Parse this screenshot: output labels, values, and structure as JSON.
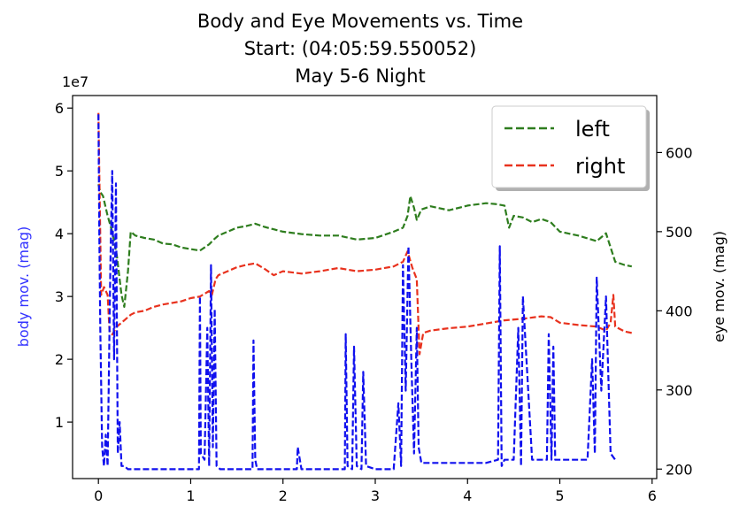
{
  "chart_data": {
    "type": "line",
    "title": [
      "Body and Eye Movements vs. Time",
      "Start: (04:05:59.550052)",
      "May 5-6 Night"
    ],
    "x_ticks": [
      "0",
      "1",
      "2",
      "3",
      "4",
      "5",
      "6"
    ],
    "xlim": [
      -0.28,
      6.05
    ],
    "left_axis": {
      "ylabel": "body mov. (mag)",
      "ylabel_color": "#3333ff",
      "offset_label": "1e7",
      "ticks": [
        "1",
        "2",
        "3",
        "4",
        "5",
        "6"
      ],
      "ylim": [
        0.1,
        6.2
      ]
    },
    "right_axis": {
      "ylabel": "eye mov. (mag)",
      "ticks": [
        "200",
        "300",
        "400",
        "500",
        "600"
      ],
      "ylim": [
        188,
        672
      ]
    },
    "legend": {
      "position": "top-right",
      "entries": [
        {
          "label": "left",
          "color": "#2e7d1e"
        },
        {
          "label": "right",
          "color": "#e8321e"
        }
      ]
    },
    "series": [
      {
        "name": "left",
        "axis": "right",
        "color": "#2e7d1e",
        "style": "dashed",
        "x": [
          0.0,
          0.02,
          0.05,
          0.08,
          0.1,
          0.15,
          0.2,
          0.25,
          0.28,
          0.32,
          0.35,
          0.4,
          0.5,
          0.6,
          0.7,
          0.8,
          0.9,
          1.0,
          1.1,
          1.2,
          1.25,
          1.3,
          1.4,
          1.5,
          1.6,
          1.7,
          1.8,
          1.9,
          2.0,
          2.2,
          2.4,
          2.6,
          2.8,
          3.0,
          3.2,
          3.3,
          3.35,
          3.38,
          3.42,
          3.45,
          3.5,
          3.6,
          3.8,
          4.0,
          4.2,
          4.3,
          4.4,
          4.45,
          4.5,
          4.6,
          4.7,
          4.8,
          4.9,
          5.0,
          5.2,
          5.4,
          5.5,
          5.55,
          5.6,
          5.7,
          5.78
        ],
        "y": [
          560,
          550,
          545,
          530,
          520,
          500,
          470,
          420,
          405,
          450,
          500,
          495,
          492,
          490,
          485,
          484,
          480,
          478,
          476,
          484,
          490,
          495,
          500,
          505,
          507,
          510,
          506,
          503,
          500,
          497,
          495,
          495,
          490,
          492,
          500,
          505,
          520,
          545,
          530,
          515,
          528,
          532,
          527,
          533,
          536,
          535,
          533,
          505,
          520,
          518,
          512,
          516,
          512,
          500,
          495,
          488,
          498,
          480,
          462,
          458,
          456
        ]
      },
      {
        "name": "right",
        "axis": "right",
        "color": "#e8321e",
        "style": "dashed",
        "x": [
          0.0,
          0.03,
          0.06,
          0.1,
          0.12,
          0.15,
          0.2,
          0.25,
          0.3,
          0.35,
          0.4,
          0.5,
          0.6,
          0.7,
          0.8,
          0.9,
          1.0,
          1.1,
          1.2,
          1.23,
          1.27,
          1.3,
          1.4,
          1.5,
          1.6,
          1.7,
          1.8,
          1.9,
          2.0,
          2.2,
          2.4,
          2.6,
          2.8,
          3.0,
          3.2,
          3.3,
          3.35,
          3.4,
          3.45,
          3.48,
          3.52,
          3.6,
          3.8,
          4.0,
          4.2,
          4.4,
          4.6,
          4.8,
          4.9,
          5.0,
          5.2,
          5.4,
          5.5,
          5.55,
          5.58,
          5.6,
          5.7,
          5.78
        ],
        "y": [
          650,
          420,
          430,
          420,
          375,
          370,
          380,
          385,
          390,
          395,
          398,
          400,
          405,
          408,
          410,
          412,
          416,
          418,
          425,
          420,
          440,
          445,
          450,
          455,
          458,
          460,
          453,
          445,
          450,
          447,
          450,
          454,
          450,
          452,
          456,
          462,
          475,
          455,
          440,
          345,
          372,
          375,
          378,
          380,
          384,
          388,
          390,
          393,
          392,
          385,
          382,
          380,
          375,
          385,
          420,
          380,
          374,
          372
        ]
      },
      {
        "name": "",
        "axis": "left",
        "color": "#1010ee",
        "style": "dashed",
        "x": [
          0.0,
          0.01,
          0.02,
          0.04,
          0.06,
          0.08,
          0.1,
          0.13,
          0.15,
          0.17,
          0.19,
          0.21,
          0.23,
          0.25,
          0.28,
          0.32,
          0.4,
          0.6,
          0.8,
          1.0,
          1.05,
          1.09,
          1.1,
          1.11,
          1.15,
          1.18,
          1.2,
          1.22,
          1.24,
          1.26,
          1.28,
          1.32,
          1.5,
          1.67,
          1.68,
          1.7,
          1.72,
          2.0,
          2.15,
          2.16,
          2.2,
          2.4,
          2.6,
          2.67,
          2.68,
          2.7,
          2.75,
          2.77,
          2.8,
          2.85,
          2.87,
          2.9,
          3.0,
          3.1,
          3.2,
          3.25,
          3.28,
          3.3,
          3.33,
          3.36,
          3.39,
          3.42,
          3.45,
          3.47,
          3.5,
          3.6,
          3.8,
          4.0,
          4.2,
          4.33,
          4.35,
          4.37,
          4.4,
          4.5,
          4.55,
          4.58,
          4.6,
          4.7,
          4.8,
          4.86,
          4.88,
          4.91,
          4.93,
          4.95,
          5.0,
          5.2,
          5.3,
          5.35,
          5.38,
          5.4,
          5.45,
          5.5,
          5.55,
          5.6
        ],
        "y": [
          5.9,
          4.0,
          2.5,
          0.6,
          0.3,
          0.8,
          0.3,
          3.5,
          5.0,
          2.0,
          4.8,
          0.5,
          1.0,
          0.3,
          0.3,
          0.25,
          0.25,
          0.25,
          0.25,
          0.25,
          0.25,
          0.25,
          3.0,
          0.5,
          0.4,
          2.5,
          0.3,
          3.5,
          0.6,
          2.8,
          0.3,
          0.25,
          0.25,
          0.25,
          2.3,
          0.4,
          0.25,
          0.25,
          0.25,
          0.6,
          0.25,
          0.25,
          0.25,
          0.25,
          2.4,
          0.3,
          0.25,
          2.2,
          0.3,
          0.25,
          1.8,
          0.3,
          0.25,
          0.25,
          0.25,
          1.3,
          0.3,
          3.5,
          1.5,
          3.8,
          2.0,
          0.5,
          2.5,
          0.6,
          0.35,
          0.35,
          0.35,
          0.35,
          0.35,
          0.4,
          3.8,
          0.3,
          0.4,
          0.4,
          2.5,
          0.3,
          3.0,
          0.4,
          0.4,
          0.4,
          2.4,
          0.4,
          2.2,
          0.4,
          0.4,
          0.4,
          0.4,
          2.0,
          0.5,
          3.3,
          1.5,
          3.0,
          0.5,
          0.4
        ]
      }
    ]
  }
}
